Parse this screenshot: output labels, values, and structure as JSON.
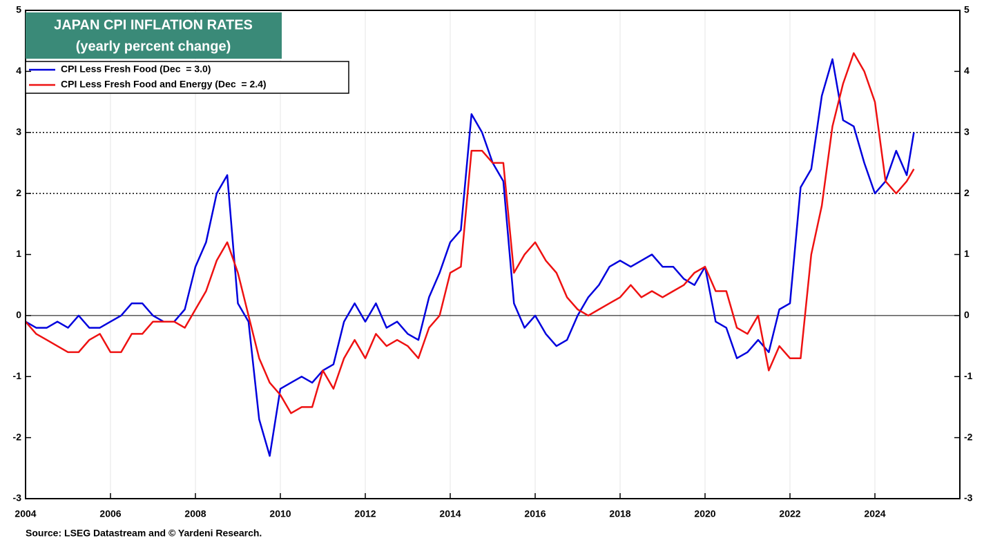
{
  "chart_data": {
    "type": "line",
    "title": "JAPAN CPI INFLATION RATES",
    "subtitle": "(yearly percent change)",
    "source": "Source: LSEG Datastream and © Yardeni Research.",
    "x": [
      2004,
      2004.25,
      2004.5,
      2004.75,
      2005,
      2005.25,
      2005.5,
      2005.75,
      2006,
      2006.25,
      2006.5,
      2006.75,
      2007,
      2007.25,
      2007.5,
      2007.75,
      2008,
      2008.25,
      2008.5,
      2008.75,
      2009,
      2009.25,
      2009.5,
      2009.75,
      2010,
      2010.25,
      2010.5,
      2010.75,
      2011,
      2011.25,
      2011.5,
      2011.75,
      2012,
      2012.25,
      2012.5,
      2012.75,
      2013,
      2013.25,
      2013.5,
      2013.75,
      2014,
      2014.25,
      2014.5,
      2014.75,
      2015,
      2015.25,
      2015.5,
      2015.75,
      2016,
      2016.25,
      2016.5,
      2016.75,
      2017,
      2017.25,
      2017.5,
      2017.75,
      2018,
      2018.25,
      2018.5,
      2018.75,
      2019,
      2019.25,
      2019.5,
      2019.75,
      2020,
      2020.25,
      2020.5,
      2020.75,
      2021,
      2021.25,
      2021.5,
      2021.75,
      2022,
      2022.25,
      2022.5,
      2022.75,
      2023,
      2023.25,
      2023.5,
      2023.75,
      2024,
      2024.25,
      2024.5,
      2024.75,
      2024.917
    ],
    "series": [
      {
        "name": "CPI Less Fresh Food (Dec  = 3.0)",
        "color": "#0000dd",
        "values": [
          -0.1,
          -0.2,
          -0.2,
          -0.1,
          -0.2,
          0.0,
          -0.2,
          -0.2,
          -0.1,
          0.0,
          0.2,
          0.2,
          0.0,
          -0.1,
          -0.1,
          0.1,
          0.8,
          1.2,
          2.0,
          2.3,
          0.2,
          -0.1,
          -1.7,
          -2.3,
          -1.2,
          -1.1,
          -1.0,
          -1.1,
          -0.9,
          -0.8,
          -0.1,
          0.2,
          -0.1,
          0.2,
          -0.2,
          -0.1,
          -0.3,
          -0.4,
          0.3,
          0.7,
          1.2,
          1.4,
          3.3,
          3.0,
          2.5,
          2.2,
          0.2,
          -0.2,
          0.0,
          -0.3,
          -0.5,
          -0.4,
          0.0,
          0.3,
          0.5,
          0.8,
          0.9,
          0.8,
          0.9,
          1.0,
          0.8,
          0.8,
          0.6,
          0.5,
          0.8,
          -0.1,
          -0.2,
          -0.7,
          -0.6,
          -0.4,
          -0.6,
          0.1,
          0.2,
          2.1,
          2.4,
          3.6,
          4.2,
          3.2,
          3.1,
          2.5,
          2.0,
          2.2,
          2.7,
          2.3,
          3.0
        ]
      },
      {
        "name": "CPI Less Fresh Food and Energy (Dec  = 2.4)",
        "color": "#ee1111",
        "values": [
          -0.1,
          -0.3,
          -0.4,
          -0.5,
          -0.6,
          -0.6,
          -0.4,
          -0.3,
          -0.6,
          -0.6,
          -0.3,
          -0.3,
          -0.1,
          -0.1,
          -0.1,
          -0.2,
          0.1,
          0.4,
          0.9,
          1.2,
          0.7,
          0.0,
          -0.7,
          -1.1,
          -1.3,
          -1.6,
          -1.5,
          -1.5,
          -0.9,
          -1.2,
          -0.7,
          -0.4,
          -0.7,
          -0.3,
          -0.5,
          -0.4,
          -0.5,
          -0.7,
          -0.2,
          0.0,
          0.7,
          0.8,
          2.7,
          2.7,
          2.5,
          2.5,
          0.7,
          1.0,
          1.2,
          0.9,
          0.7,
          0.3,
          0.1,
          0.0,
          0.1,
          0.2,
          0.3,
          0.5,
          0.3,
          0.4,
          0.3,
          0.4,
          0.5,
          0.7,
          0.8,
          0.4,
          0.4,
          -0.2,
          -0.3,
          0.0,
          -0.9,
          -0.5,
          -0.7,
          -0.7,
          1.0,
          1.8,
          3.1,
          3.8,
          4.3,
          4.0,
          3.5,
          2.2,
          2.0,
          2.2,
          2.4
        ]
      }
    ],
    "xlim": [
      2004,
      2026
    ],
    "xticks": [
      2004,
      2006,
      2008,
      2010,
      2012,
      2014,
      2016,
      2018,
      2020,
      2022,
      2024
    ],
    "ylim": [
      -3,
      5
    ],
    "yticks": [
      -3,
      -2,
      -1,
      0,
      1,
      2,
      3,
      4,
      5
    ],
    "reference_lines": [
      2,
      3
    ],
    "grid": true,
    "legend": "upper left"
  }
}
